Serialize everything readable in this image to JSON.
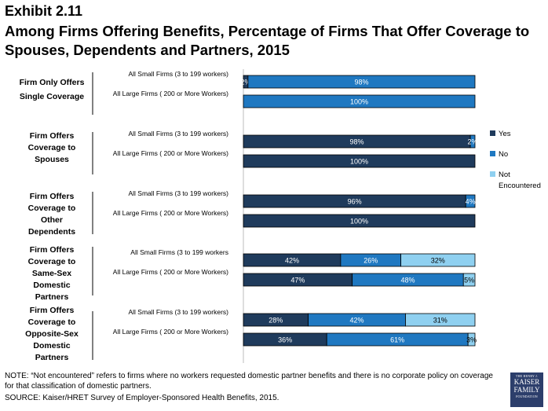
{
  "header": {
    "exhibit": "Exhibit 2.11",
    "title": "Among Firms Offering Benefits, Percentage of Firms That Offer Coverage to Spouses, Dependents and Partners, 2015"
  },
  "footer": {
    "note": "NOTE: “Not encountered” refers to firms where no workers requested domestic partner benefits and there is no corporate policy on coverage for that classification of domestic partners.",
    "source": "SOURCE: Kaiser/HRET Survey of Employer-Sponsored Health Benefits, 2015."
  },
  "logo": {
    "line1": "THE HENRY J.",
    "line2a": "KAISER",
    "line2b": "FAMILY",
    "line3": "FOUNDATION"
  },
  "colors": {
    "yes": "#1f3b5c",
    "no": "#1f78c1",
    "not_encountered": "#8fd0f0"
  },
  "chart_data": {
    "type": "bar",
    "orientation": "horizontal",
    "stacked": true,
    "xlim": [
      0,
      100
    ],
    "legend": [
      "Yes",
      "No",
      "Not Encountered"
    ],
    "legend_position": "right",
    "groups": [
      {
        "label": "Firm Only Offers Single Coverage",
        "rows": [
          {
            "label": "All Small Firms (3 to 199 workers)",
            "values": [
              2,
              98,
              0
            ],
            "labels": [
              "2%",
              "98%",
              ""
            ]
          },
          {
            "label": "All Large Firms ( 200 or More Workers)",
            "values": [
              0,
              100,
              0
            ],
            "labels": [
              "",
              "100%",
              ""
            ]
          }
        ]
      },
      {
        "label": "Firm Offers Coverage to Spouses",
        "rows": [
          {
            "label": "All Small Firms (3 to 199 workers)",
            "values": [
              98,
              2,
              0
            ],
            "labels": [
              "98%",
              "2%",
              ""
            ]
          },
          {
            "label": "All Large Firms ( 200 or More Workers)",
            "values": [
              100,
              0,
              0
            ],
            "labels": [
              "100%",
              "",
              ""
            ]
          }
        ]
      },
      {
        "label": "Firm Offers Coverage to Other Dependents",
        "rows": [
          {
            "label": "All Small Firms (3 to 199 workers)",
            "values": [
              96,
              4,
              0
            ],
            "labels": [
              "96%",
              "4%",
              ""
            ]
          },
          {
            "label": "All Large Firms ( 200 or More Workers)",
            "values": [
              100,
              0,
              0
            ],
            "labels": [
              "100%",
              "",
              ""
            ]
          }
        ]
      },
      {
        "label": "Firm Offers Coverage to Same-Sex Domestic Partners",
        "rows": [
          {
            "label": "All Small Firms (3 to 199 workers",
            "values": [
              42,
              26,
              32
            ],
            "labels": [
              "42%",
              "26%",
              "32%"
            ]
          },
          {
            "label": "All Large Firms ( 200 or More Workers)",
            "values": [
              47,
              48,
              5
            ],
            "labels": [
              "47%",
              "48%",
              "5%"
            ]
          }
        ]
      },
      {
        "label": "Firm Offers Coverage to Opposite-Sex Domestic Partners",
        "rows": [
          {
            "label": "All Small Firms (3 to 199 workers)",
            "values": [
              28,
              42,
              31
            ],
            "labels": [
              "28%",
              "42%",
              "31%"
            ]
          },
          {
            "label": "All Large Firms ( 200 or More Workers)",
            "values": [
              36,
              61,
              3
            ],
            "labels": [
              "36%",
              "61%",
              "3%"
            ]
          }
        ]
      }
    ]
  }
}
